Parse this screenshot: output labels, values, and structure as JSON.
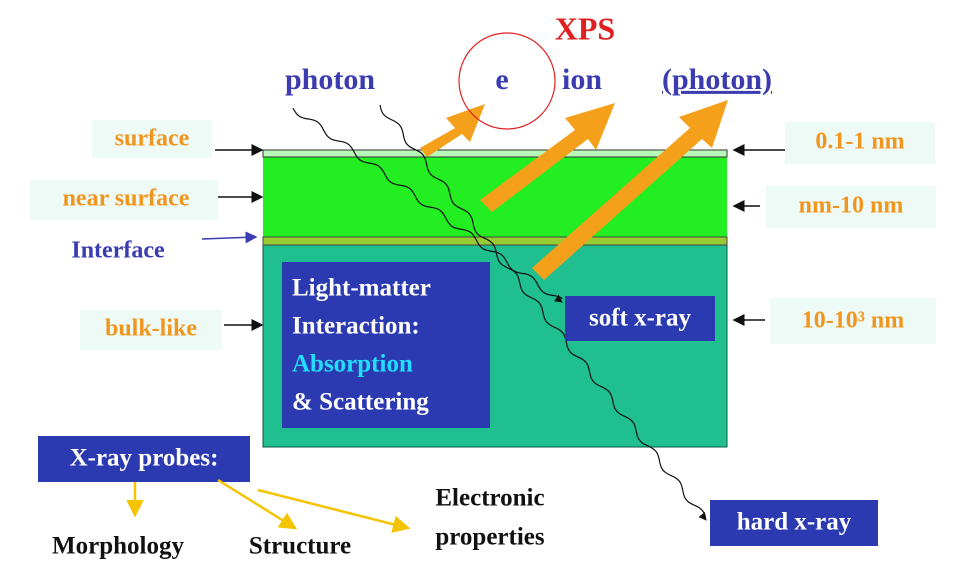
{
  "title": "XPS",
  "top_labels": {
    "photon_in": "photon",
    "electron": "e",
    "ion": "ion",
    "photon_out": "(photon)"
  },
  "left_labels": {
    "surface": "surface",
    "near_surface": "near surface",
    "interface": "Interface",
    "bulk": "bulk-like"
  },
  "right_labels": {
    "surface_depth": "0.1-1 nm",
    "near_surface_depth": "nm-10 nm",
    "bulk_depth": "10-10³ nm"
  },
  "interaction_box": {
    "line1": "Light-matter",
    "line2": "Interaction:",
    "line3": "Absorption",
    "line4": "& Scattering"
  },
  "soft_xray": "soft x-ray",
  "hard_xray": "hard x-ray",
  "probes": {
    "title": "X-ray probes:",
    "items": [
      "Morphology",
      "Structure",
      "Electronic",
      "properties"
    ]
  }
}
